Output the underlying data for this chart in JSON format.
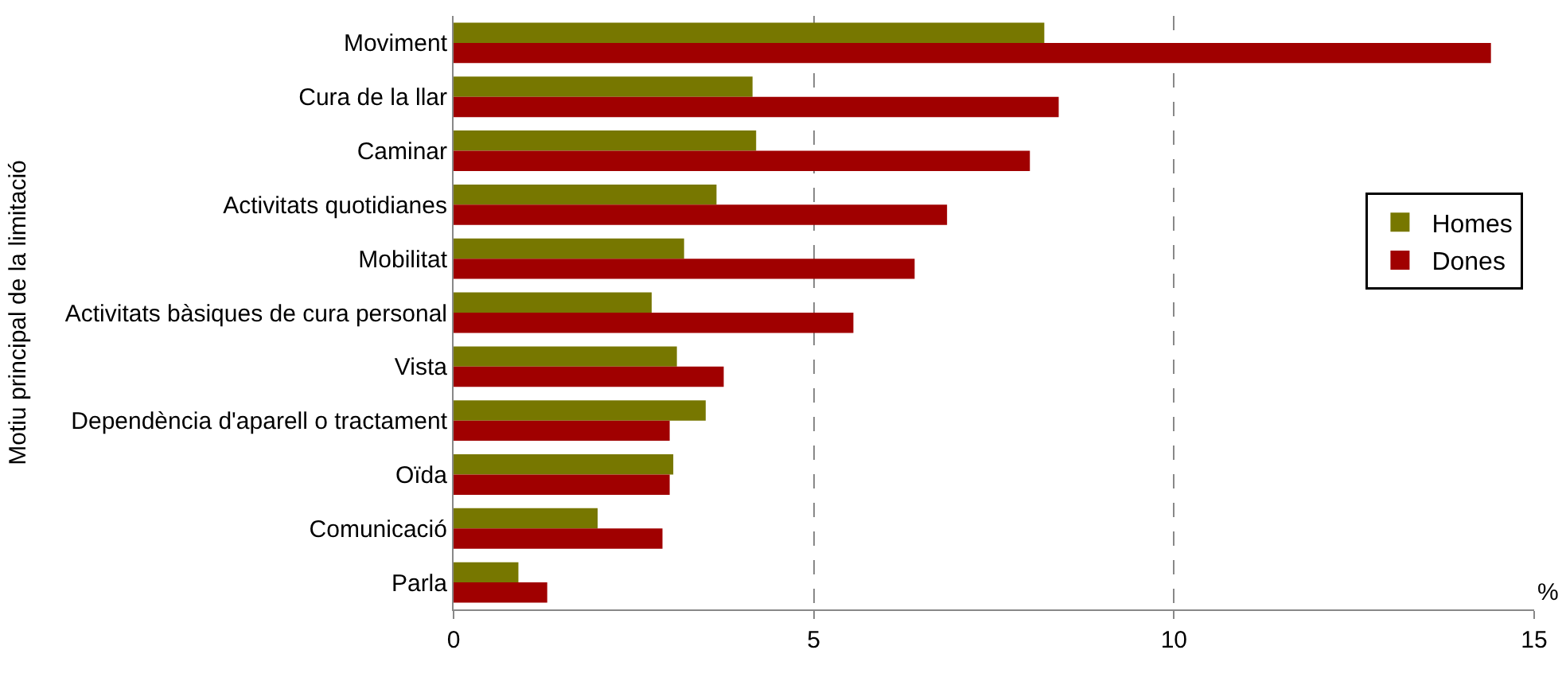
{
  "chart_data": {
    "type": "bar",
    "orientation": "horizontal",
    "ylabel": "Motiu principal de la limitació",
    "categories": [
      "Moviment",
      "Cura de la llar",
      "Caminar",
      "Activitats quotidianes",
      "Mobilitat",
      "Activitats bàsiques de cura personal",
      "Vista",
      "Dependència d'aparell o tractament",
      "Oïda",
      "Comunicació",
      "Parla"
    ],
    "series": [
      {
        "name": "Homes",
        "color": "#777700",
        "values": [
          8.2,
          4.15,
          4.2,
          3.65,
          3.2,
          2.75,
          3.1,
          3.5,
          3.05,
          2.0,
          0.9
        ]
      },
      {
        "name": "Dones",
        "color": "#a00000",
        "values": [
          14.4,
          8.4,
          8.0,
          6.85,
          6.4,
          5.55,
          3.75,
          3.0,
          3.0,
          2.9,
          1.3
        ]
      }
    ],
    "xlim": [
      0,
      15
    ],
    "xticks": [
      0,
      5,
      10,
      15
    ],
    "grid": "x",
    "legend": "right",
    "annotations": [
      "%"
    ]
  }
}
